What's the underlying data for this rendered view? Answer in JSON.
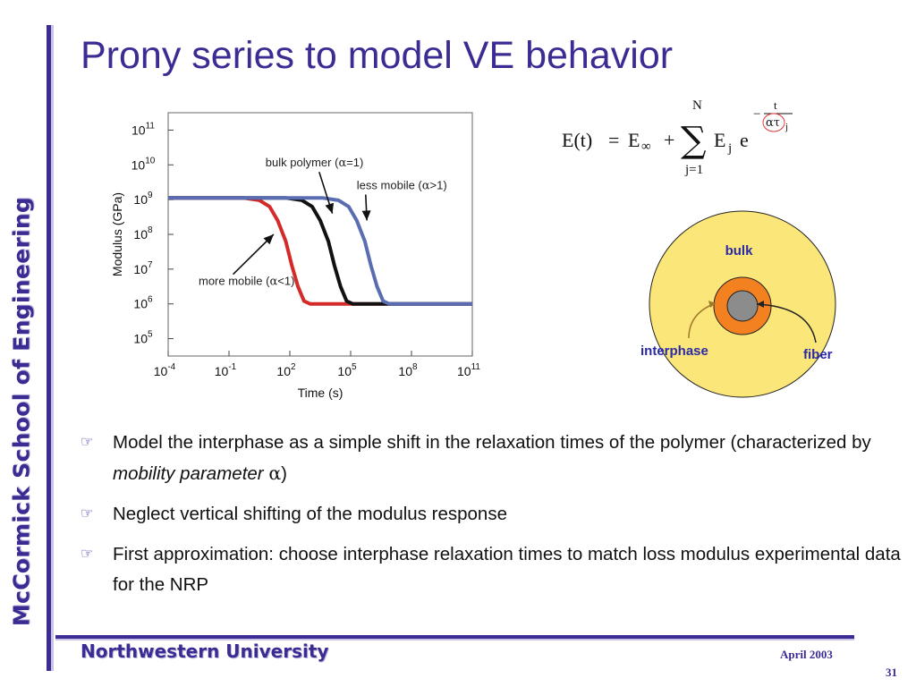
{
  "slide": {
    "title": "Prony series to model VE behavior",
    "side_brand": "McCormick School of Engineering",
    "footer_org": "Northwestern University",
    "footer_date": "April 2003",
    "page_number": "31",
    "colors": {
      "accent": "#3a2c93",
      "accent_light": "#c9c4e6",
      "bulk": "#fbe67a",
      "interphase": "#f4811f",
      "fiber": "#8c8c8c"
    }
  },
  "formula": {
    "lhs": "E(t)",
    "eq": "=",
    "e_inf": "E",
    "inf": "∞",
    "plus": "+",
    "sum_top": "N",
    "sum_sign": "∑",
    "sum_bottom": "j=1",
    "ej": "E",
    "j": "j",
    "e": "e",
    "minus": "−",
    "exp_num": "t",
    "exp_den": "ατ",
    "exp_den_sub": "j"
  },
  "fiber_diagram": {
    "bulk_label": "bulk",
    "interphase_label": "interphase",
    "fiber_label": "fiber"
  },
  "bullets": [
    {
      "pre": "Model the interphase as a simple shift in the relaxation times of the polymer (characterized by ",
      "em": "mobility parameter",
      "greek": "α",
      "post": ")"
    },
    {
      "pre": "Neglect vertical shifting of the modulus response"
    },
    {
      "pre": "First approximation: choose interphase relaxation times to match loss modulus experimental data for the NRP"
    }
  ],
  "chart_data": {
    "type": "line",
    "xlabel": "Time (s)",
    "ylabel": "Modulus (GPa)",
    "x_scale": "log",
    "y_scale": "log",
    "xlim_exp": [
      -4,
      11
    ],
    "ylim_exp": [
      4.5,
      11.5
    ],
    "x_ticks": [
      {
        "base": "10",
        "exp": "-4",
        "value": -4
      },
      {
        "base": "10",
        "exp": "-1",
        "value": -1
      },
      {
        "base": "10",
        "exp": "2",
        "value": 2
      },
      {
        "base": "10",
        "exp": "5",
        "value": 5
      },
      {
        "base": "10",
        "exp": "8",
        "value": 8
      },
      {
        "base": "10",
        "exp": "11",
        "value": 11
      }
    ],
    "y_ticks": [
      {
        "base": "10",
        "exp": "5",
        "value": 5
      },
      {
        "base": "10",
        "exp": "6",
        "value": 6
      },
      {
        "base": "10",
        "exp": "7",
        "value": 7
      },
      {
        "base": "10",
        "exp": "8",
        "value": 8
      },
      {
        "base": "10",
        "exp": "9",
        "value": 9
      },
      {
        "base": "10",
        "exp": "10",
        "value": 10
      },
      {
        "base": "10",
        "exp": "11",
        "value": 11
      }
    ],
    "grid": false,
    "series": [
      {
        "color": "#d42a2a",
        "x": [
          -4,
          -0.3,
          0.5,
          1.0,
          1.4,
          1.8,
          2.1,
          2.4,
          2.7,
          3.0,
          11
        ],
        "y": [
          9.05,
          9.05,
          8.98,
          8.8,
          8.4,
          7.8,
          7.1,
          6.5,
          6.08,
          6.0,
          6.0
        ]
      },
      {
        "color": "#111111",
        "x": [
          -4,
          1.8,
          2.6,
          3.1,
          3.5,
          3.9,
          4.2,
          4.5,
          4.8,
          5.1,
          11
        ],
        "y": [
          9.05,
          9.05,
          8.98,
          8.8,
          8.4,
          7.8,
          7.1,
          6.5,
          6.08,
          6.0,
          6.0
        ]
      },
      {
        "color": "#5a6db3",
        "x": [
          -4,
          3.6,
          4.4,
          4.9,
          5.3,
          5.7,
          6.0,
          6.3,
          6.6,
          6.9,
          11
        ],
        "y": [
          9.05,
          9.05,
          8.98,
          8.8,
          8.4,
          7.8,
          7.1,
          6.5,
          6.08,
          6.0,
          6.0
        ]
      }
    ],
    "annotations": [
      {
        "text": "bulk polymer (",
        "greek": "α",
        "tail": "=1)",
        "x": 0.8,
        "y": 9.95,
        "arrow_to": [
          4.1,
          8.6
        ]
      },
      {
        "text": "less mobile (",
        "greek": "α",
        "tail": ">1)",
        "x": 5.3,
        "y": 9.3,
        "arrow_to": [
          5.8,
          8.4
        ]
      },
      {
        "text": "more mobile (",
        "greek": "α",
        "tail": "<1)",
        "x": -2.5,
        "y": 6.55,
        "arrow_to": [
          1.2,
          8.0
        ],
        "arrow_from": [
          -0.8,
          6.85
        ]
      }
    ]
  }
}
